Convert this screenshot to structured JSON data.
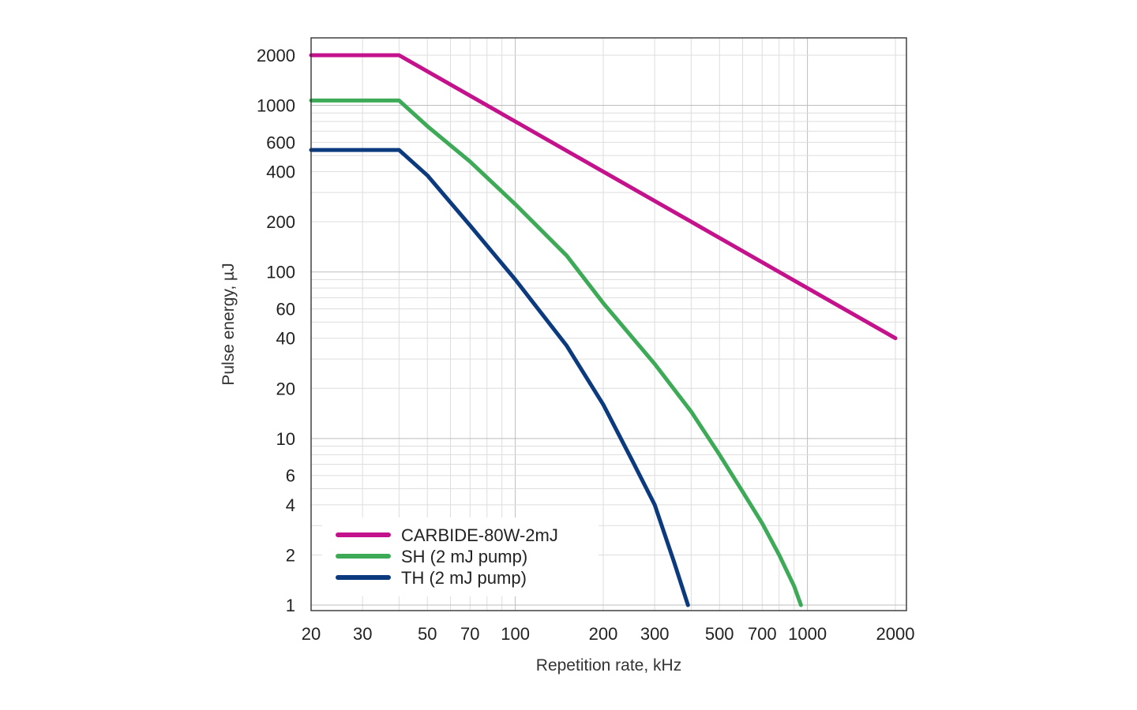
{
  "chart_data": {
    "type": "line",
    "xlabel": "Repetition rate, kHz",
    "ylabel": "Pulse energy, µJ",
    "xscale": "log",
    "yscale": "log",
    "xlim": [
      20,
      2500
    ],
    "ylim": [
      0.85,
      3000
    ],
    "x_ticks": [
      20,
      30,
      50,
      70,
      100,
      200,
      300,
      500,
      700,
      1000,
      2000
    ],
    "x_tick_labels": [
      "20",
      "30",
      "50",
      "70",
      "100",
      "200",
      "300",
      "500",
      "700",
      "1000",
      "2000"
    ],
    "y_ticks": [
      1,
      2,
      4,
      6,
      10,
      20,
      40,
      60,
      100,
      200,
      400,
      600,
      1000,
      2000
    ],
    "y_tick_labels": [
      "1",
      "2",
      "4",
      "6",
      "10",
      "20",
      "40",
      "60",
      "100",
      "200",
      "400",
      "600",
      "1000",
      "2000"
    ],
    "grid": true,
    "legend_position": "bottom-left",
    "series": [
      {
        "name": "CARBIDE-80W-2mJ",
        "color": "#c4118c",
        "points": [
          [
            20,
            2000
          ],
          [
            40,
            2000
          ],
          [
            100,
            800
          ],
          [
            200,
            400
          ],
          [
            400,
            200
          ],
          [
            1000,
            80
          ],
          [
            2000,
            40
          ]
        ]
      },
      {
        "name": "SH (2 mJ pump)",
        "color": "#3daa57",
        "points": [
          [
            20,
            1070
          ],
          [
            40,
            1070
          ],
          [
            50,
            750
          ],
          [
            70,
            460
          ],
          [
            100,
            255
          ],
          [
            150,
            125
          ],
          [
            200,
            65
          ],
          [
            300,
            28
          ],
          [
            400,
            14.5
          ],
          [
            500,
            8
          ],
          [
            600,
            4.8
          ],
          [
            700,
            3.1
          ],
          [
            800,
            2.0
          ],
          [
            900,
            1.3
          ],
          [
            950,
            1.0
          ]
        ]
      },
      {
        "name": "TH (2 mJ pump)",
        "color": "#0b3a7e",
        "points": [
          [
            20,
            540
          ],
          [
            40,
            540
          ],
          [
            50,
            380
          ],
          [
            70,
            190
          ],
          [
            100,
            90
          ],
          [
            150,
            36
          ],
          [
            200,
            16
          ],
          [
            250,
            7.5
          ],
          [
            300,
            4.0
          ],
          [
            350,
            1.8
          ],
          [
            390,
            1.0
          ]
        ]
      }
    ]
  }
}
